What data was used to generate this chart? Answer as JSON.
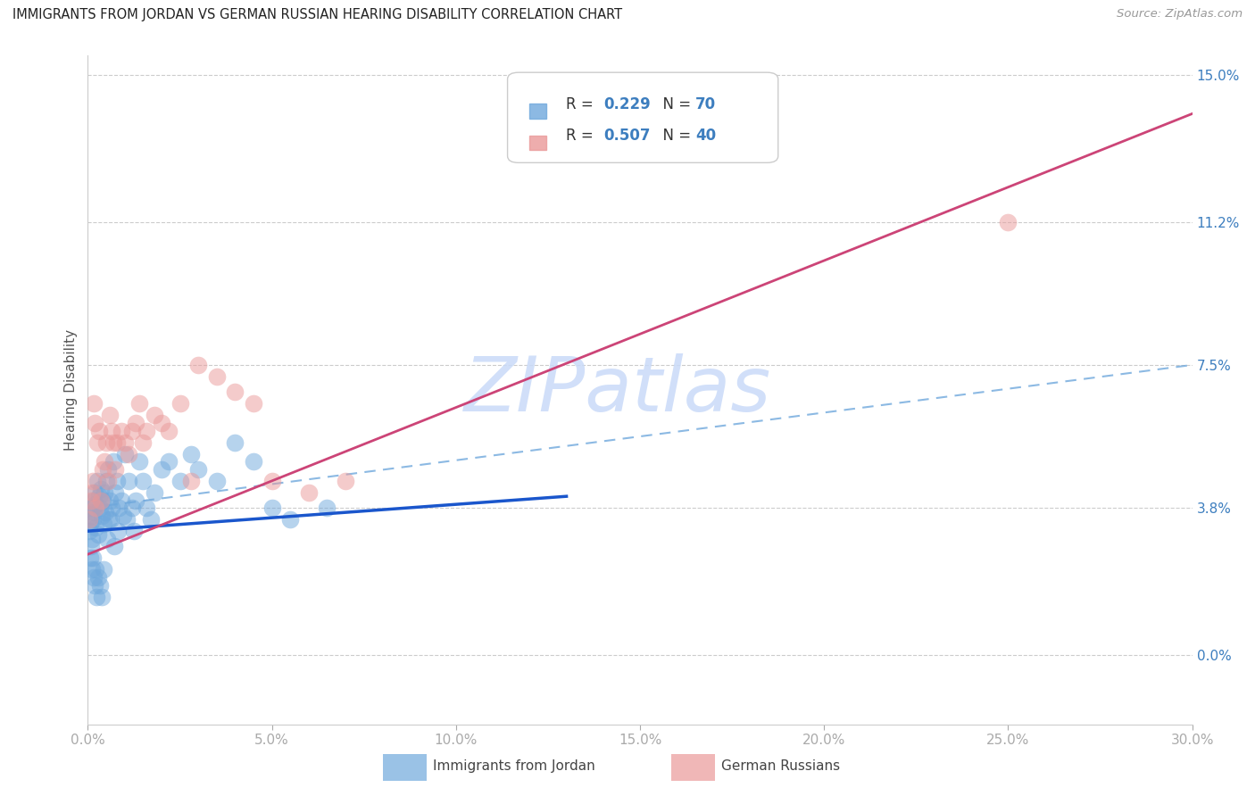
{
  "title": "IMMIGRANTS FROM JORDAN VS GERMAN RUSSIAN HEARING DISABILITY CORRELATION CHART",
  "source": "Source: ZipAtlas.com",
  "xlabel_vals": [
    0.0,
    5.0,
    10.0,
    15.0,
    20.0,
    25.0,
    30.0
  ],
  "ylabel_vals": [
    0.0,
    3.8,
    7.5,
    11.2,
    15.0
  ],
  "xmin": 0.0,
  "xmax": 30.0,
  "ymin": -1.8,
  "ymax": 15.5,
  "jordan_R": 0.229,
  "jordan_N": 70,
  "german_R": 0.507,
  "german_N": 40,
  "jordan_color": "#6fa8dc",
  "german_color": "#ea9999",
  "jordan_line_color": "#1a56cc",
  "german_line_color": "#cc4477",
  "dashed_line_color": "#6fa8dc",
  "watermark_text": "ZIPatlas",
  "watermark_color": "#c9daf8",
  "legend_label_jordan": "Immigrants from Jordan",
  "legend_label_german": "German Russians",
  "jordan_line_x0": 0.0,
  "jordan_line_y0": 3.2,
  "jordan_line_x1": 13.0,
  "jordan_line_y1": 4.1,
  "german_line_x0": 0.0,
  "german_line_y0": 2.6,
  "german_line_x1": 30.0,
  "german_line_y1": 14.0,
  "dashed_line_x0": 0.0,
  "dashed_line_y0": 3.8,
  "dashed_line_x1": 30.0,
  "dashed_line_y1": 7.5,
  "jordan_scatter_x": [
    0.05,
    0.07,
    0.08,
    0.1,
    0.12,
    0.13,
    0.15,
    0.17,
    0.18,
    0.2,
    0.22,
    0.25,
    0.27,
    0.3,
    0.33,
    0.35,
    0.38,
    0.4,
    0.43,
    0.45,
    0.48,
    0.5,
    0.55,
    0.58,
    0.6,
    0.65,
    0.7,
    0.75,
    0.8,
    0.85,
    0.9,
    0.95,
    1.0,
    1.1,
    1.2,
    1.3,
    1.4,
    1.5,
    1.6,
    1.8,
    2.0,
    2.2,
    2.5,
    2.8,
    3.0,
    3.5,
    4.0,
    4.5,
    5.0,
    5.5,
    0.06,
    0.09,
    0.11,
    0.14,
    0.16,
    0.19,
    0.21,
    0.24,
    0.28,
    0.32,
    0.37,
    0.42,
    0.52,
    0.62,
    0.72,
    0.82,
    1.05,
    1.25,
    1.7,
    6.5
  ],
  "jordan_scatter_y": [
    3.2,
    3.4,
    3.6,
    3.0,
    3.8,
    3.5,
    3.7,
    4.0,
    4.2,
    3.3,
    3.9,
    4.5,
    3.1,
    4.1,
    3.8,
    4.3,
    3.6,
    4.0,
    3.4,
    4.2,
    3.7,
    4.5,
    4.8,
    3.5,
    4.0,
    3.8,
    5.0,
    4.2,
    4.5,
    3.8,
    4.0,
    3.6,
    5.2,
    4.5,
    3.8,
    4.0,
    5.0,
    4.5,
    3.8,
    4.2,
    4.8,
    5.0,
    4.5,
    5.2,
    4.8,
    4.5,
    5.5,
    5.0,
    3.8,
    3.5,
    2.5,
    2.8,
    2.2,
    2.5,
    2.0,
    1.8,
    2.2,
    1.5,
    2.0,
    1.8,
    1.5,
    2.2,
    3.0,
    3.5,
    2.8,
    3.2,
    3.5,
    3.2,
    3.5,
    3.8
  ],
  "german_scatter_x": [
    0.05,
    0.08,
    0.1,
    0.13,
    0.15,
    0.18,
    0.2,
    0.25,
    0.3,
    0.35,
    0.4,
    0.45,
    0.5,
    0.55,
    0.6,
    0.65,
    0.7,
    0.75,
    0.8,
    0.9,
    1.0,
    1.1,
    1.2,
    1.3,
    1.4,
    1.5,
    1.6,
    1.8,
    2.0,
    2.2,
    2.5,
    2.8,
    3.0,
    3.5,
    4.0,
    4.5,
    5.0,
    6.0,
    7.0,
    25.0
  ],
  "german_scatter_y": [
    3.5,
    4.0,
    4.2,
    4.5,
    6.5,
    6.0,
    3.8,
    5.5,
    5.8,
    4.0,
    4.8,
    5.0,
    5.5,
    4.5,
    6.2,
    5.8,
    5.5,
    4.8,
    5.5,
    5.8,
    5.5,
    5.2,
    5.8,
    6.0,
    6.5,
    5.5,
    5.8,
    6.2,
    6.0,
    5.8,
    6.5,
    4.5,
    7.5,
    7.2,
    6.8,
    6.5,
    4.5,
    4.2,
    4.5,
    11.2
  ]
}
